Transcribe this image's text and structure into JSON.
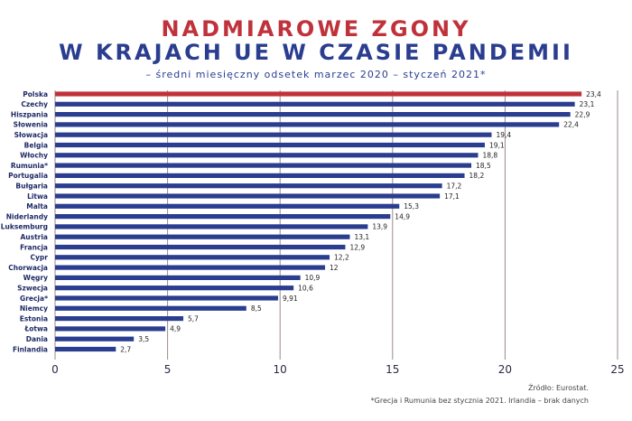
{
  "header": {
    "title_line1": "NADMIAROWE ZGONY",
    "title_line2": "W KRAJACH UE W CZASIE PANDEMII",
    "subtitle": "– średni miesięczny odsetek marzec 2020 – styczeń 2021*"
  },
  "footer": {
    "source": "Źródło: Eurostat.",
    "footnote": "*Grecja i Rumunia bez stycznia 2021. Irlandia – brak danych"
  },
  "colors": {
    "highlight": "#c0323b",
    "bar": "#2a3d8f",
    "grid": "#9a8a8a"
  },
  "chart_data": {
    "type": "bar",
    "orientation": "horizontal",
    "title": "NADMIAROWE ZGONY W KRAJACH UE W CZASIE PANDEMII",
    "subtitle": "– średni miesięczny odsetek marzec 2020 – styczeń 2021*",
    "xlim": [
      0,
      25
    ],
    "xticks": [
      0,
      5,
      10,
      15,
      20,
      25
    ],
    "grid": "vertical",
    "highlighted_category": "Polska",
    "categories": [
      "Polska",
      "Czechy",
      "Hiszpania",
      "Słowenia",
      "Słowacja",
      "Belgia",
      "Włochy",
      "Rumunia*",
      "Portugalia",
      "Bułgaria",
      "Litwa",
      "Malta",
      "Niderlandy",
      "Luksemburg",
      "Austria",
      "Francja",
      "Cypr",
      "Chorwacja",
      "Węgry",
      "Szwecja",
      "Grecja*",
      "Niemcy",
      "Estonia",
      "Łotwa",
      "Dania",
      "Finlandia"
    ],
    "values": [
      23.4,
      23.1,
      22.9,
      22.4,
      19.4,
      19.1,
      18.8,
      18.5,
      18.2,
      17.2,
      17.1,
      15.3,
      14.9,
      13.9,
      13.1,
      12.9,
      12.2,
      12,
      10.9,
      10.6,
      9.91,
      8.5,
      5.7,
      4.9,
      3.5,
      2.7
    ],
    "value_labels": [
      "23,4",
      "23,1",
      "22,9",
      "22,4",
      "19,4",
      "19,1",
      "18,8",
      "18,5",
      "18,2",
      "17,2",
      "17,1",
      "15,3",
      "14,9",
      "13,9",
      "13,1",
      "12,9",
      "12,2",
      "12",
      "10,9",
      "10,6",
      "9,91",
      "8,5",
      "5,7",
      "4,9",
      "3,5",
      "2,7"
    ]
  }
}
